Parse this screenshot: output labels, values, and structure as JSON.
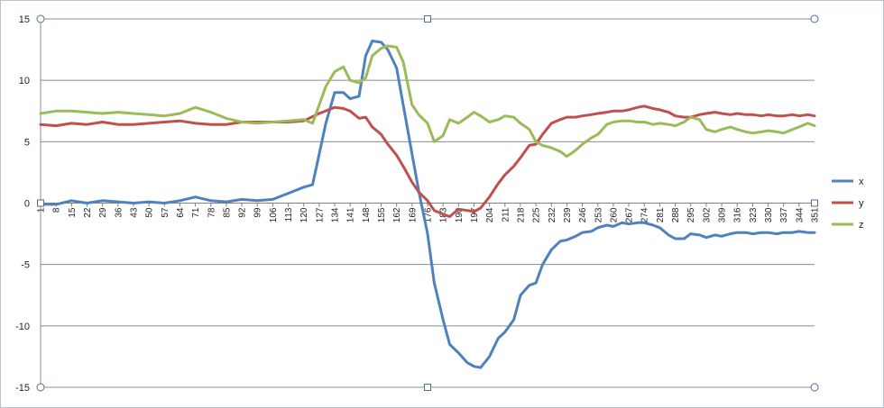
{
  "chart_data": {
    "type": "line",
    "title": "",
    "xlabel": "",
    "ylabel": "",
    "x_range": [
      1,
      351
    ],
    "x_tick_labels": [
      "1",
      "8",
      "15",
      "22",
      "29",
      "36",
      "43",
      "50",
      "57",
      "64",
      "71",
      "78",
      "85",
      "92",
      "99",
      "106",
      "113",
      "120",
      "127",
      "134",
      "141",
      "148",
      "155",
      "162",
      "169",
      "176",
      "183",
      "190",
      "197",
      "204",
      "211",
      "218",
      "225",
      "232",
      "239",
      "246",
      "253",
      "260",
      "267",
      "274",
      "281",
      "288",
      "295",
      "302",
      "309",
      "316",
      "323",
      "330",
      "337",
      "344",
      "351"
    ],
    "ylim": [
      -15,
      15
    ],
    "y_ticks": [
      -15,
      -10,
      -5,
      0,
      5,
      10,
      15
    ],
    "grid": "horizontal",
    "legend_position": "right",
    "series": [
      {
        "name": "x",
        "color": "#4f81bd",
        "points": [
          [
            1,
            -0.1
          ],
          [
            8,
            -0.1
          ],
          [
            15,
            0.2
          ],
          [
            22,
            0.0
          ],
          [
            29,
            0.2
          ],
          [
            36,
            0.1
          ],
          [
            43,
            0.0
          ],
          [
            50,
            0.1
          ],
          [
            57,
            0.0
          ],
          [
            64,
            0.2
          ],
          [
            71,
            0.5
          ],
          [
            78,
            0.2
          ],
          [
            85,
            0.1
          ],
          [
            92,
            0.3
          ],
          [
            99,
            0.2
          ],
          [
            106,
            0.3
          ],
          [
            113,
            0.8
          ],
          [
            120,
            1.3
          ],
          [
            124,
            1.5
          ],
          [
            127,
            4.0
          ],
          [
            130,
            6.5
          ],
          [
            134,
            9.0
          ],
          [
            138,
            9.0
          ],
          [
            141,
            8.5
          ],
          [
            145,
            8.7
          ],
          [
            148,
            12.0
          ],
          [
            151,
            13.2
          ],
          [
            155,
            13.1
          ],
          [
            158,
            12.5
          ],
          [
            162,
            11.0
          ],
          [
            165,
            8.0
          ],
          [
            169,
            4.0
          ],
          [
            172,
            1.0
          ],
          [
            176,
            -2.5
          ],
          [
            179,
            -6.5
          ],
          [
            183,
            -9.5
          ],
          [
            186,
            -11.5
          ],
          [
            190,
            -12.2
          ],
          [
            194,
            -13.0
          ],
          [
            197,
            -13.3
          ],
          [
            200,
            -13.4
          ],
          [
            204,
            -12.5
          ],
          [
            208,
            -11.0
          ],
          [
            211,
            -10.5
          ],
          [
            215,
            -9.5
          ],
          [
            218,
            -7.5
          ],
          [
            222,
            -6.7
          ],
          [
            225,
            -6.5
          ],
          [
            228,
            -5.0
          ],
          [
            232,
            -3.8
          ],
          [
            236,
            -3.1
          ],
          [
            239,
            -3.0
          ],
          [
            243,
            -2.7
          ],
          [
            246,
            -2.4
          ],
          [
            250,
            -2.3
          ],
          [
            253,
            -2.0
          ],
          [
            257,
            -1.8
          ],
          [
            260,
            -1.9
          ],
          [
            264,
            -1.6
          ],
          [
            267,
            -1.7
          ],
          [
            271,
            -1.6
          ],
          [
            274,
            -1.6
          ],
          [
            278,
            -1.8
          ],
          [
            281,
            -2.0
          ],
          [
            285,
            -2.6
          ],
          [
            288,
            -2.9
          ],
          [
            292,
            -2.9
          ],
          [
            295,
            -2.5
          ],
          [
            299,
            -2.6
          ],
          [
            302,
            -2.8
          ],
          [
            306,
            -2.6
          ],
          [
            309,
            -2.7
          ],
          [
            313,
            -2.5
          ],
          [
            316,
            -2.4
          ],
          [
            320,
            -2.4
          ],
          [
            323,
            -2.5
          ],
          [
            327,
            -2.4
          ],
          [
            330,
            -2.4
          ],
          [
            334,
            -2.5
          ],
          [
            337,
            -2.4
          ],
          [
            341,
            -2.4
          ],
          [
            344,
            -2.3
          ],
          [
            348,
            -2.4
          ],
          [
            351,
            -2.4
          ]
        ]
      },
      {
        "name": "y",
        "color": "#c0504d",
        "points": [
          [
            1,
            6.4
          ],
          [
            8,
            6.3
          ],
          [
            15,
            6.5
          ],
          [
            22,
            6.4
          ],
          [
            29,
            6.6
          ],
          [
            36,
            6.4
          ],
          [
            43,
            6.4
          ],
          [
            50,
            6.5
          ],
          [
            57,
            6.6
          ],
          [
            64,
            6.7
          ],
          [
            71,
            6.5
          ],
          [
            78,
            6.4
          ],
          [
            85,
            6.4
          ],
          [
            92,
            6.6
          ],
          [
            99,
            6.6
          ],
          [
            106,
            6.6
          ],
          [
            113,
            6.6
          ],
          [
            120,
            6.7
          ],
          [
            127,
            7.3
          ],
          [
            134,
            7.8
          ],
          [
            138,
            7.7
          ],
          [
            141,
            7.5
          ],
          [
            145,
            6.9
          ],
          [
            148,
            7.0
          ],
          [
            151,
            6.2
          ],
          [
            155,
            5.6
          ],
          [
            158,
            4.8
          ],
          [
            162,
            3.9
          ],
          [
            165,
            3.0
          ],
          [
            169,
            1.7
          ],
          [
            172,
            0.9
          ],
          [
            176,
            0.2
          ],
          [
            179,
            -0.6
          ],
          [
            183,
            -0.9
          ],
          [
            186,
            -1.1
          ],
          [
            190,
            -0.5
          ],
          [
            194,
            -0.6
          ],
          [
            197,
            -0.7
          ],
          [
            200,
            -0.4
          ],
          [
            204,
            0.5
          ],
          [
            208,
            1.6
          ],
          [
            211,
            2.3
          ],
          [
            215,
            3.0
          ],
          [
            218,
            3.7
          ],
          [
            222,
            4.7
          ],
          [
            225,
            4.8
          ],
          [
            228,
            5.6
          ],
          [
            232,
            6.5
          ],
          [
            236,
            6.8
          ],
          [
            239,
            7.0
          ],
          [
            243,
            7.0
          ],
          [
            246,
            7.1
          ],
          [
            250,
            7.2
          ],
          [
            253,
            7.3
          ],
          [
            257,
            7.4
          ],
          [
            260,
            7.5
          ],
          [
            264,
            7.5
          ],
          [
            267,
            7.6
          ],
          [
            271,
            7.8
          ],
          [
            274,
            7.9
          ],
          [
            278,
            7.7
          ],
          [
            281,
            7.6
          ],
          [
            285,
            7.4
          ],
          [
            288,
            7.1
          ],
          [
            292,
            7.0
          ],
          [
            295,
            7.0
          ],
          [
            299,
            7.2
          ],
          [
            302,
            7.3
          ],
          [
            306,
            7.4
          ],
          [
            309,
            7.3
          ],
          [
            313,
            7.2
          ],
          [
            316,
            7.3
          ],
          [
            320,
            7.2
          ],
          [
            323,
            7.2
          ],
          [
            327,
            7.1
          ],
          [
            330,
            7.2
          ],
          [
            334,
            7.1
          ],
          [
            337,
            7.1
          ],
          [
            341,
            7.2
          ],
          [
            344,
            7.1
          ],
          [
            348,
            7.2
          ],
          [
            351,
            7.1
          ]
        ]
      },
      {
        "name": "z",
        "color": "#9bbb59",
        "points": [
          [
            1,
            7.3
          ],
          [
            8,
            7.5
          ],
          [
            15,
            7.5
          ],
          [
            22,
            7.4
          ],
          [
            29,
            7.3
          ],
          [
            36,
            7.4
          ],
          [
            43,
            7.3
          ],
          [
            50,
            7.2
          ],
          [
            57,
            7.1
          ],
          [
            64,
            7.3
          ],
          [
            71,
            7.8
          ],
          [
            78,
            7.4
          ],
          [
            85,
            6.9
          ],
          [
            92,
            6.6
          ],
          [
            99,
            6.5
          ],
          [
            106,
            6.6
          ],
          [
            113,
            6.7
          ],
          [
            120,
            6.8
          ],
          [
            124,
            6.5
          ],
          [
            127,
            8.0
          ],
          [
            130,
            9.5
          ],
          [
            134,
            10.7
          ],
          [
            138,
            11.1
          ],
          [
            141,
            10.0
          ],
          [
            145,
            9.8
          ],
          [
            148,
            10.2
          ],
          [
            151,
            12.0
          ],
          [
            155,
            12.6
          ],
          [
            158,
            12.8
          ],
          [
            162,
            12.7
          ],
          [
            165,
            11.5
          ],
          [
            169,
            8.0
          ],
          [
            172,
            7.2
          ],
          [
            176,
            6.5
          ],
          [
            179,
            5.0
          ],
          [
            183,
            5.5
          ],
          [
            186,
            6.8
          ],
          [
            190,
            6.5
          ],
          [
            194,
            7.0
          ],
          [
            197,
            7.4
          ],
          [
            200,
            7.1
          ],
          [
            204,
            6.6
          ],
          [
            208,
            6.8
          ],
          [
            211,
            7.1
          ],
          [
            215,
            7.0
          ],
          [
            218,
            6.5
          ],
          [
            222,
            6.0
          ],
          [
            225,
            5.0
          ],
          [
            228,
            4.7
          ],
          [
            232,
            4.5
          ],
          [
            236,
            4.2
          ],
          [
            239,
            3.8
          ],
          [
            243,
            4.3
          ],
          [
            246,
            4.8
          ],
          [
            250,
            5.3
          ],
          [
            253,
            5.6
          ],
          [
            257,
            6.4
          ],
          [
            260,
            6.6
          ],
          [
            264,
            6.7
          ],
          [
            267,
            6.7
          ],
          [
            271,
            6.6
          ],
          [
            274,
            6.6
          ],
          [
            278,
            6.4
          ],
          [
            281,
            6.5
          ],
          [
            285,
            6.4
          ],
          [
            288,
            6.3
          ],
          [
            292,
            6.6
          ],
          [
            295,
            7.0
          ],
          [
            299,
            6.8
          ],
          [
            302,
            6.0
          ],
          [
            306,
            5.8
          ],
          [
            309,
            6.0
          ],
          [
            313,
            6.2
          ],
          [
            316,
            6.0
          ],
          [
            320,
            5.8
          ],
          [
            323,
            5.7
          ],
          [
            327,
            5.8
          ],
          [
            330,
            5.9
          ],
          [
            334,
            5.8
          ],
          [
            337,
            5.7
          ],
          [
            341,
            6.0
          ],
          [
            344,
            6.2
          ],
          [
            348,
            6.5
          ],
          [
            351,
            6.3
          ]
        ]
      }
    ]
  }
}
